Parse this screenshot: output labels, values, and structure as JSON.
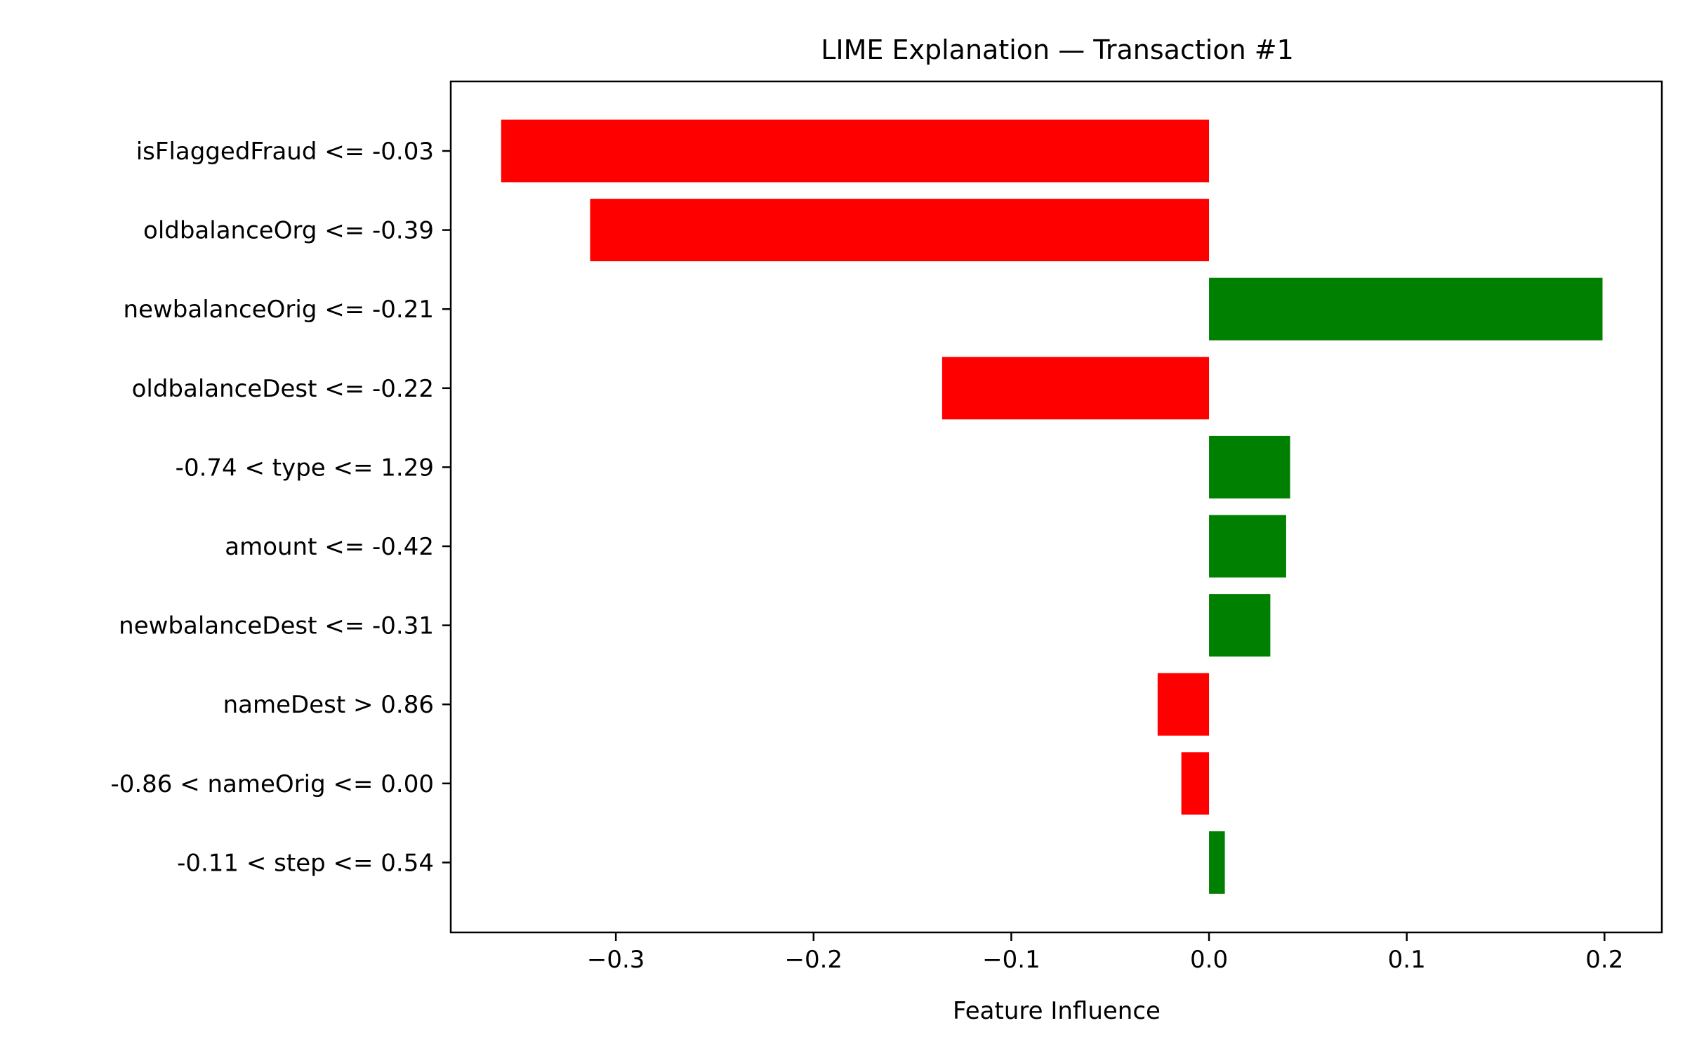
{
  "chart_data": {
    "type": "bar",
    "orientation": "horizontal",
    "title": "LIME Explanation — Transaction #1",
    "xlabel": "Feature Influence",
    "ylabel": "",
    "xlim": [
      -0.3835,
      0.229
    ],
    "xticks": [
      {
        "value": -0.3,
        "label": "−0.3"
      },
      {
        "value": -0.2,
        "label": "−0.2"
      },
      {
        "value": -0.1,
        "label": "−0.1"
      },
      {
        "value": 0.0,
        "label": "0.0"
      },
      {
        "value": 0.1,
        "label": "0.1"
      },
      {
        "value": 0.2,
        "label": "0.2"
      }
    ],
    "categories": [
      "isFlaggedFraud <= -0.03",
      "oldbalanceOrg <= -0.39",
      "newbalanceOrig <= -0.21",
      "oldbalanceDest <= -0.22",
      "-0.74 < type <= 1.29",
      "amount <= -0.42",
      "newbalanceDest <= -0.31",
      "nameDest > 0.86",
      "-0.86 < nameOrig <= 0.00",
      "-0.11 < step <= 0.54"
    ],
    "values": [
      -0.358,
      -0.313,
      0.199,
      -0.135,
      0.041,
      0.039,
      0.031,
      -0.026,
      -0.014,
      0.008
    ],
    "positive_color": "#008000",
    "negative_color": "#ff0000",
    "grid": false,
    "legend": "none"
  }
}
